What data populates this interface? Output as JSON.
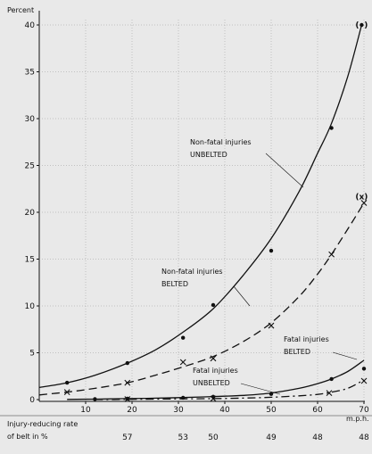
{
  "chart_data": {
    "type": "line",
    "ylabel": "Percent",
    "xlabel": "m.p.h.",
    "xlim": [
      0,
      72
    ],
    "ylim": [
      0,
      41
    ],
    "x_ticks": [
      10,
      20,
      30,
      40,
      50,
      60,
      70
    ],
    "y_ticks": [
      0,
      5,
      10,
      15,
      20,
      25,
      30,
      35,
      40
    ],
    "series": [
      {
        "name": "Non-fatal injuries UNBELTED",
        "points": [
          [
            6,
            1.8
          ],
          [
            19,
            3.9
          ],
          [
            31,
            6.6
          ],
          [
            37.5,
            10.1
          ],
          [
            50,
            15.9
          ],
          [
            63,
            29
          ],
          [
            69.5,
            40
          ]
        ],
        "curve": [
          [
            0,
            1.3
          ],
          [
            6,
            1.8
          ],
          [
            12,
            2.6
          ],
          [
            19,
            3.9
          ],
          [
            25,
            5.3
          ],
          [
            31,
            7.2
          ],
          [
            37.5,
            9.7
          ],
          [
            44,
            13.3
          ],
          [
            50,
            17.2
          ],
          [
            56,
            22.2
          ],
          [
            60,
            26.3
          ],
          [
            63,
            29.5
          ],
          [
            66.5,
            34.5
          ],
          [
            69.5,
            40
          ]
        ],
        "marker": "dot",
        "style": "solid"
      },
      {
        "name": "Non-fatal injuries BELTED",
        "points": [
          [
            6,
            0.8
          ],
          [
            19,
            1.8
          ],
          [
            31,
            4
          ],
          [
            37.5,
            4.4
          ],
          [
            50,
            7.9
          ],
          [
            63,
            15.5
          ],
          [
            70,
            21
          ]
        ],
        "curve": [
          [
            0,
            0.5
          ],
          [
            6,
            0.8
          ],
          [
            12,
            1.2
          ],
          [
            19,
            1.8
          ],
          [
            25,
            2.6
          ],
          [
            31,
            3.5
          ],
          [
            37.5,
            4.6
          ],
          [
            44,
            6.2
          ],
          [
            50,
            8.2
          ],
          [
            56,
            11
          ],
          [
            60,
            13.4
          ],
          [
            63,
            15.5
          ],
          [
            66.5,
            18.2
          ],
          [
            70,
            21
          ]
        ],
        "marker": "x",
        "style": "dash"
      },
      {
        "name": "Fatal injuries UNBELTED",
        "points": [
          [
            12,
            0.05
          ],
          [
            19,
            0.1
          ],
          [
            31,
            0.2
          ],
          [
            37.5,
            0.3
          ],
          [
            50,
            0.6
          ],
          [
            63,
            2.2
          ],
          [
            70,
            3.3
          ]
        ],
        "curve": [
          [
            6,
            0.02
          ],
          [
            12,
            0.05
          ],
          [
            19,
            0.1
          ],
          [
            25,
            0.15
          ],
          [
            31,
            0.22
          ],
          [
            37.5,
            0.32
          ],
          [
            44,
            0.45
          ],
          [
            50,
            0.7
          ],
          [
            56,
            1.2
          ],
          [
            60,
            1.7
          ],
          [
            63,
            2.2
          ],
          [
            66.5,
            3
          ],
          [
            70,
            4.2
          ]
        ],
        "marker": "dot",
        "style": "solid"
      },
      {
        "name": "Fatal injuries BELTED",
        "points": [
          [
            19,
            0.05
          ],
          [
            37.5,
            0.1
          ],
          [
            62.5,
            0.7
          ],
          [
            70,
            2
          ]
        ],
        "curve": [
          [
            12,
            0.01
          ],
          [
            19,
            0.03
          ],
          [
            25,
            0.05
          ],
          [
            31,
            0.08
          ],
          [
            37.5,
            0.1
          ],
          [
            44,
            0.16
          ],
          [
            50,
            0.25
          ],
          [
            56,
            0.4
          ],
          [
            60,
            0.55
          ],
          [
            62.5,
            0.75
          ],
          [
            66.5,
            1.2
          ],
          [
            70,
            2.1
          ]
        ],
        "marker": "x",
        "style": "dashdot"
      }
    ],
    "end_markers": [
      "(•)",
      "(x)"
    ],
    "annotations": [
      {
        "id": "nonfatal-unbelted",
        "line1": "Non-fatal injuries",
        "line2": "UNBELTED"
      },
      {
        "id": "nonfatal-belted",
        "line1": "Non-fatal injuries",
        "line2": "BELTED"
      },
      {
        "id": "fatal-belted",
        "line1": "Fatal injuries",
        "line2": "BELTED"
      },
      {
        "id": "fatal-unbelted",
        "line1": "Fatal injuries",
        "line2": "UNBELTED"
      }
    ],
    "reduction_label_1": "Injury-reducing rate",
    "reduction_label_2": "of belt in %",
    "reduction_rates": [
      {
        "x": 19,
        "value": "57"
      },
      {
        "x": 31,
        "value": "53"
      },
      {
        "x": 37.5,
        "value": "50"
      },
      {
        "x": 50,
        "value": "49"
      },
      {
        "x": 60,
        "value": "48"
      },
      {
        "x": 70,
        "value": "48"
      }
    ]
  }
}
